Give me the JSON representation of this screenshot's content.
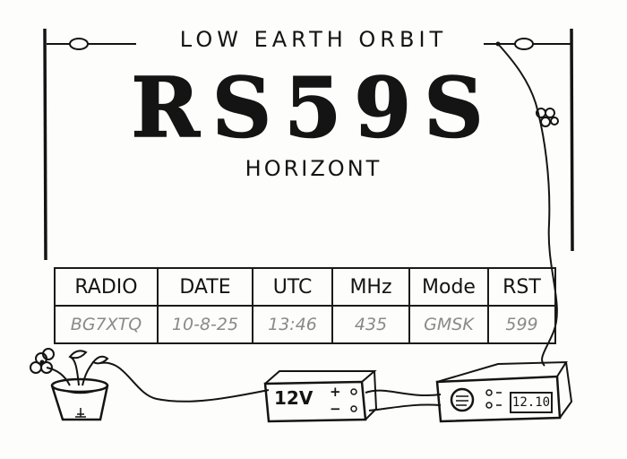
{
  "card": {
    "subtitle": "LOW EARTH ORBIT",
    "callsign": "RS59S",
    "station": "HORIZONT"
  },
  "qso_table": {
    "headers": [
      "RADIO",
      "DATE",
      "UTC",
      "MHz",
      "Mode",
      "RST"
    ],
    "values": [
      "BG7XTQ",
      "10-8-25",
      "13:46",
      "435",
      "GMSK",
      "599"
    ]
  },
  "equipment": {
    "power_supply_label": "12V",
    "power_supply_plus": "+",
    "power_supply_minus": "−",
    "radio_display": "12.10"
  },
  "icons": [
    "antenna-insulator-icon",
    "potted-flower-icon",
    "clover-icon",
    "power-supply-icon",
    "radio-transceiver-icon"
  ],
  "colors": {
    "ink": "#141414",
    "paper": "#fdfdfb",
    "faded_ink": "#8a8a8a"
  }
}
